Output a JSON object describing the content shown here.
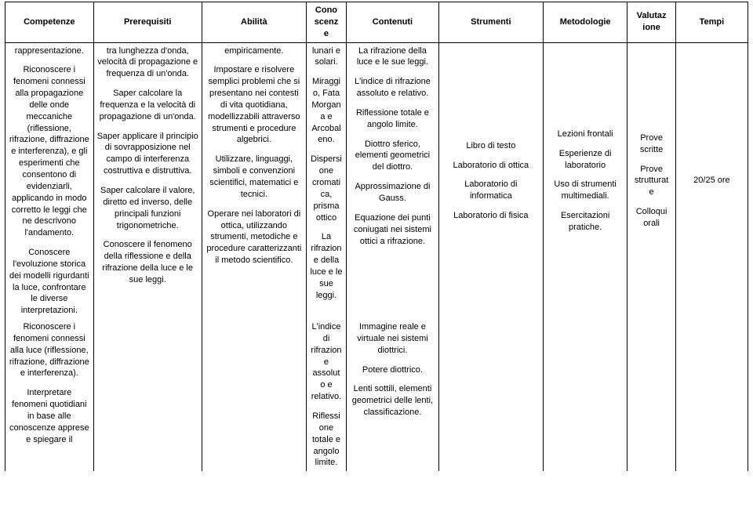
{
  "table": {
    "headers": {
      "competenze": "Competenze",
      "prerequisiti": "Prerequisiti",
      "abilita": "Abilità",
      "conoscenze": "Cono\nscenz\ne",
      "contenuti": "Contenuti",
      "strumenti": "Strumenti",
      "metodologie": "Metodologie",
      "valutazione": "Valutaz\nione",
      "tempi": "Tempi"
    },
    "row1": {
      "competenze": {
        "p1": "rappresentazione.",
        "p2": "Riconoscere i fenomeni connessi alla propagazione delle onde meccaniche (riflessione, rifrazione, diffrazione e interferenza), e gli esperimenti che consentono di evidenziarli, applicando in modo corretto le leggi che ne descrivono l'andamento.",
        "p3": "Conoscere l'evoluzione storica dei modelli rigurdanti la luce, confrontare le diverse interpretazioni."
      },
      "prerequisiti": {
        "p1": "tra lunghezza d'onda, velocità di propagazione e frequenza di un'onda.",
        "p2": "Saper calcolare la frequenza e la velocità di propagazione di un'onda.",
        "p3": "Saper applicare il principio di sovrapposizione nel campo di interferenza costruttiva e distruttiva.",
        "p4": "Saper calcolare il valore, diretto ed inverso, delle principali funzioni trigonometriche.",
        "p5": "Conoscere il fenomeno della riflessione e della rifrazione della luce e le sue leggi."
      },
      "abilita": {
        "p1": "empiricamente.",
        "p2": "Impostare e risolvere semplici problemi che si presentano nei contesti di vita quotidiana, modellizzabili attraverso strumenti e procedure algebrici.",
        "p3": "Utilizzare, linguaggi, simboli e convenzioni scientifici, matematici e tecnici.",
        "p4": "Operare nei laboratori di ottica, utilizzando strumenti, metodiche e procedure caratterizzanti il metodo scientifico."
      },
      "conoscenze": {
        "p1": "lunari e solari.",
        "p2": "Miraggi\no, Fata Morgan\na e Arcobal\neno.",
        "p3": "Dispersi\none cromati\nca, prisma ottico",
        "p4": "La rifrazion\ne della luce e le sue leggi."
      },
      "contenuti": {
        "p1": "La rifrazione della luce e le sue leggi.",
        "p2": "L'indice di rifrazione assoluto e relativo.",
        "p3": "Riflessione totale e angolo limite.",
        "p4": "Diottro sferico, elementi geometrici del diottro.",
        "p5": "Approssimazione di Gauss.",
        "p6": "Equazione dei punti coniugati nei sistemi ottici a rifrazione."
      },
      "strumenti": {
        "p1": "Libro di testo",
        "p2": "Laboratorio di ottica",
        "p3": "Laboratorio di informatica",
        "p4": "Laboratorio di fisica"
      },
      "metodologie": {
        "p1": "Lezioni frontali",
        "p2": "Esperienze di laboratorio",
        "p3": "Uso di strumenti multimediali.",
        "p4": "Esercitazioni pratiche."
      },
      "valutazione": {
        "p1": "Prove scritte",
        "p2": "Prove strutturat\ne",
        "p3": "Colloqui orali"
      },
      "tempi": "20/25 ore"
    },
    "row2": {
      "competenze": {
        "p1": "Riconoscere i fenomeni connessi alla luce (riflessione, rifrazione, diffrazione e interferenza).",
        "p2": "Interpretare fenomeni quotidiani in base alle conoscenze apprese e spiegare il"
      },
      "conoscenze": {
        "p1": "L'indice di rifrazion\ne assolut\no e relativo.",
        "p2": "Riflessi\none totale e angolo limite."
      },
      "contenuti": {
        "p1": "Immagine reale e virtuale nei sistemi diottrici.",
        "p2": "Potere diottrico.",
        "p3": "Lenti sottili, elementi geometrici delle lenti, classificazione."
      }
    }
  }
}
